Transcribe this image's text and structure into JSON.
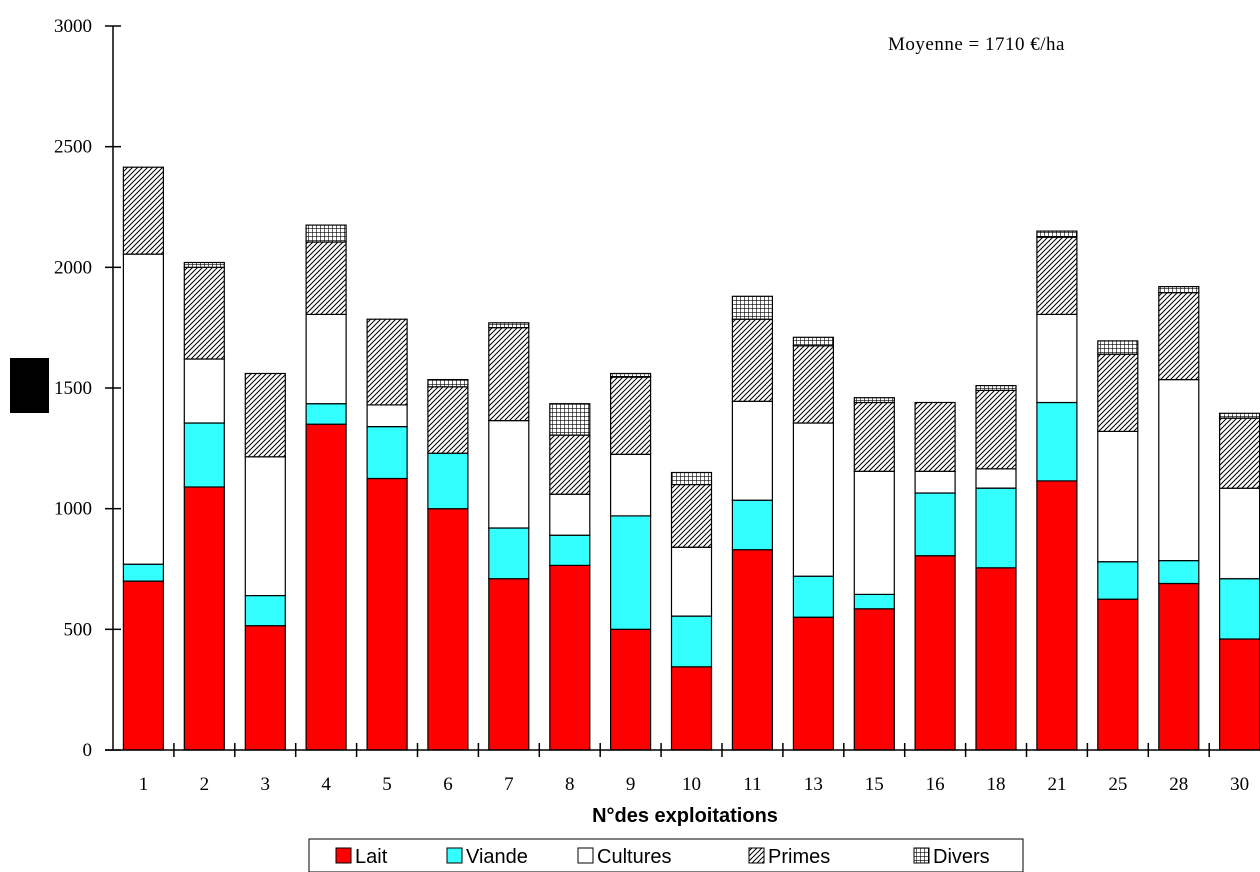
{
  "chart_data": {
    "type": "bar",
    "stacked": true,
    "title": "",
    "annotation": "Moyenne =  1710  €/ha",
    "xlabel": "N°des exploitations",
    "ylabel": "",
    "ylim": [
      0,
      3000
    ],
    "yticks": [
      0,
      500,
      1000,
      1500,
      2000,
      2500,
      3000
    ],
    "grid": false,
    "legend_position": "bottom",
    "categories": [
      "1",
      "2",
      "3",
      "4",
      "5",
      "6",
      "7",
      "8",
      "9",
      "10",
      "11",
      "13",
      "15",
      "16",
      "18",
      "21",
      "25",
      "28",
      "30"
    ],
    "series": [
      {
        "name": "Lait",
        "color": "#ff0000",
        "pattern": "solid",
        "values": [
          700,
          1090,
          515,
          1350,
          1125,
          1000,
          710,
          765,
          500,
          345,
          830,
          550,
          585,
          805,
          755,
          1115,
          625,
          690,
          460
        ]
      },
      {
        "name": "Viande",
        "color": "#33ffff",
        "pattern": "solid",
        "values": [
          70,
          265,
          125,
          85,
          215,
          230,
          210,
          125,
          470,
          210,
          205,
          170,
          60,
          260,
          330,
          325,
          155,
          95,
          250
        ]
      },
      {
        "name": "Cultures",
        "color": "#ffffff",
        "pattern": "solid",
        "values": [
          1285,
          265,
          575,
          370,
          90,
          0,
          445,
          170,
          255,
          285,
          410,
          635,
          510,
          90,
          80,
          365,
          540,
          750,
          375
        ]
      },
      {
        "name": "Primes",
        "color": "#ffffff",
        "pattern": "diagonal",
        "values": [
          360,
          380,
          345,
          300,
          355,
          275,
          385,
          245,
          320,
          260,
          340,
          320,
          285,
          285,
          325,
          320,
          320,
          360,
          290
        ]
      },
      {
        "name": "Divers",
        "color": "#ffffff",
        "pattern": "grid",
        "values": [
          0,
          20,
          0,
          70,
          0,
          30,
          20,
          130,
          15,
          50,
          95,
          35,
          20,
          0,
          20,
          25,
          55,
          25,
          20
        ]
      }
    ]
  }
}
